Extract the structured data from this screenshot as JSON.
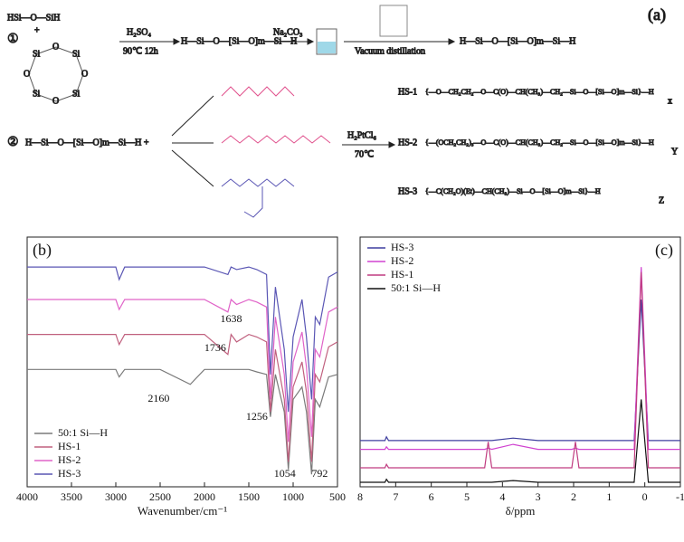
{
  "scheme": {
    "label": "(a)",
    "step1": "①",
    "step2": "②",
    "reactant1": "HSi—O—SiH",
    "plus": "+",
    "ring_atoms": [
      "Si",
      "O",
      "Si",
      "O",
      "Si",
      "O",
      "Si",
      "O"
    ],
    "cond1": "H₂SO₄",
    "cond1b": "90℃ 12h",
    "product1": "H—Si—O—[Si—O]m—Si—H",
    "cond2": "Na₂CO₃",
    "cond3": "Vacuum distillation",
    "product2": "H—Si—O—[Si—O]m—Si—H",
    "reactant2": "H—Si—O—[Si—O]m—Si—H +",
    "cond4": "H₂PtCl₆",
    "cond5": "70℃",
    "products": [
      {
        "name": "HS-1",
        "formula": "{—O—CH₂CH₂—O—C(O)—CH(CH₃)—CH₂—Si—O—[Si—O]m—Si}—H",
        "sub": "x"
      },
      {
        "name": "HS-2",
        "formula": "{—(OCH₂CH₂)₃—O—C(O)—CH(CH₃)—CH₂—Si—O—[Si—O]m—Si}—H",
        "sub": "Y"
      },
      {
        "name": "HS-3",
        "formula": "{—C(CH₂O)(Et)—CH(CH₃)—Si—O—[Si—O]m—Si}—H",
        "sub": "Z"
      }
    ]
  },
  "chart_data": [
    {
      "type": "line",
      "panel": "(b)",
      "x_label": "Wavenumber/cm⁻¹",
      "x": [
        4000,
        3500,
        3000,
        2962,
        2900,
        2500,
        2160,
        2000,
        1736,
        1700,
        1638,
        1500,
        1410,
        1300,
        1256,
        1200,
        1100,
        1054,
        1000,
        900,
        850,
        792,
        750,
        700,
        600,
        500
      ],
      "xlim": [
        4000,
        500
      ],
      "xticks": [
        4000,
        3500,
        3000,
        2500,
        2000,
        1500,
        1000,
        500
      ],
      "ylim": [
        0,
        100
      ],
      "legend": "lower left",
      "annotations": [
        "1736",
        "1638",
        "2160",
        "1256",
        "1054",
        "792"
      ],
      "series": [
        {
          "name": "50:1 Si—H",
          "color": "#7a7a7a",
          "values": [
            47,
            47,
            47,
            44,
            47,
            47,
            41,
            47,
            47,
            47,
            47,
            47,
            46,
            45,
            28,
            45,
            30,
            7,
            35,
            40,
            30,
            5,
            35,
            32,
            44,
            45
          ]
        },
        {
          "name": "HS-1",
          "color": "#c0607e",
          "values": [
            61,
            61,
            61,
            57,
            61,
            61,
            61,
            61,
            53,
            61,
            58,
            61,
            60,
            58,
            30,
            55,
            35,
            10,
            40,
            50,
            38,
            10,
            45,
            42,
            56,
            58
          ]
        },
        {
          "name": "HS-2",
          "color": "#e063c8",
          "values": [
            75,
            75,
            75,
            71,
            75,
            75,
            75,
            75,
            70,
            75,
            73,
            75,
            74,
            72,
            35,
            68,
            45,
            18,
            50,
            62,
            48,
            20,
            55,
            52,
            70,
            72
          ]
        },
        {
          "name": "HS-3",
          "color": "#5a56b4",
          "values": [
            88,
            88,
            88,
            83,
            88,
            88,
            88,
            88,
            85,
            88,
            87,
            88,
            87,
            85,
            45,
            80,
            55,
            30,
            60,
            75,
            60,
            35,
            68,
            65,
            84,
            86
          ]
        }
      ]
    },
    {
      "type": "line",
      "panel": "(c)",
      "x_label": "δ/ppm",
      "x": [
        8,
        7.3,
        7.26,
        7.2,
        6,
        5,
        4.5,
        4.4,
        4.3,
        3.7,
        3,
        2.05,
        1.95,
        1.85,
        1,
        0.3,
        0.1,
        -0.1,
        -0.5,
        -1
      ],
      "xlim": [
        8,
        -1
      ],
      "xticks": [
        8,
        7,
        6,
        5,
        4,
        3,
        2,
        1,
        0,
        -1
      ],
      "ylim": [
        0,
        100
      ],
      "legend": "upper left",
      "series": [
        {
          "name": "HS-3",
          "color": "#3f3f9f",
          "values": [
            18.5,
            18.5,
            20,
            18.5,
            18.5,
            18.5,
            18.5,
            18.5,
            18.5,
            19.5,
            18.5,
            18.5,
            18.5,
            18.5,
            18.5,
            18.5,
            75,
            18.5,
            18.5,
            18.5
          ]
        },
        {
          "name": "HS-2",
          "color": "#d043d0",
          "values": [
            15,
            15,
            16,
            15,
            15,
            15,
            15,
            15.5,
            15,
            17,
            15,
            15,
            15.5,
            15,
            15,
            15,
            88,
            15,
            15,
            15
          ]
        },
        {
          "name": "HS-1",
          "color": "#c03c80",
          "values": [
            7.6,
            7.6,
            9,
            7.6,
            7.6,
            7.6,
            7.6,
            18,
            7.6,
            7.6,
            7.6,
            7.6,
            18,
            7.6,
            7.6,
            7.6,
            86,
            7.6,
            7.6,
            7.6
          ]
        },
        {
          "name": "50:1 Si—H",
          "color": "#111111",
          "values": [
            1.8,
            1.8,
            3,
            1.8,
            1.8,
            1.8,
            1.8,
            1.8,
            1.8,
            2.5,
            1.8,
            1.8,
            1.8,
            1.8,
            1.8,
            1.8,
            35,
            1.8,
            1.8,
            1.8
          ]
        }
      ]
    }
  ]
}
